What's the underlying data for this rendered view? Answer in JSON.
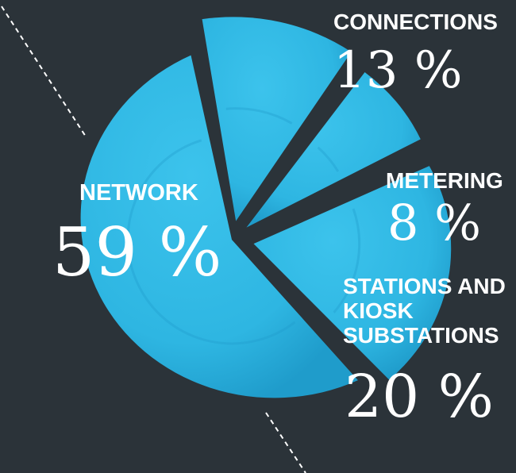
{
  "colors": {
    "background": "#2b3339",
    "slice": "#2eb6e2",
    "slice_shade": "#1f9ccb",
    "text": "#ffffff",
    "dashed_line": "#ffffff"
  },
  "chart_data": {
    "type": "pie",
    "title": "",
    "slices": [
      {
        "label": "NETWORK",
        "value": 59,
        "display": "59 %"
      },
      {
        "label": "CONNECTIONS",
        "value": 13,
        "display": "13 %"
      },
      {
        "label": "METERING",
        "value": 8,
        "display": "8 %"
      },
      {
        "label": "STATIONS AND KIOSK SUBSTATIONS",
        "value": 20,
        "display": "20 %"
      }
    ],
    "legend": "none"
  }
}
